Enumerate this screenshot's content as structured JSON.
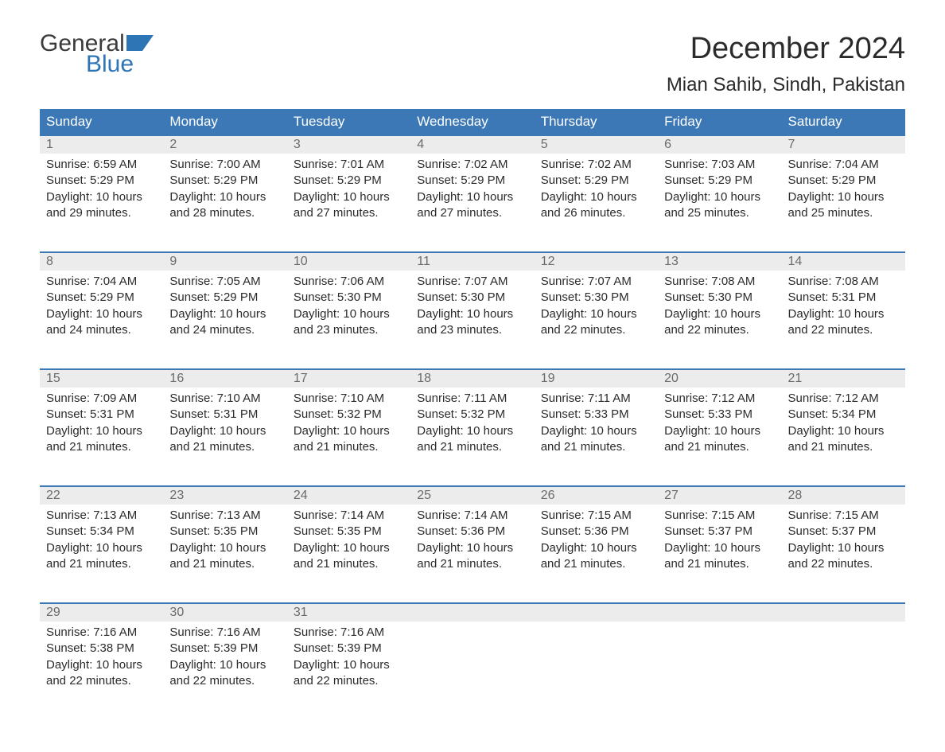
{
  "brand": {
    "word1": "General",
    "word2": "Blue",
    "color_text": "#3b3b3b",
    "color_accent": "#2e75b6"
  },
  "header": {
    "month_title": "December 2024",
    "location": "Mian Sahib, Sindh, Pakistan"
  },
  "calendar": {
    "columns": [
      "Sunday",
      "Monday",
      "Tuesday",
      "Wednesday",
      "Thursday",
      "Friday",
      "Saturday"
    ],
    "header_bg": "#3b78b5",
    "header_fg": "#ffffff",
    "daynum_bg": "#ececec",
    "daynum_fg": "#6b6b6b",
    "rule_color": "#3b78b5",
    "text_color": "#2b2b2b",
    "weeks": [
      [
        {
          "n": "1",
          "sunrise": "Sunrise: 6:59 AM",
          "sunset": "Sunset: 5:29 PM",
          "d1": "Daylight: 10 hours",
          "d2": "and 29 minutes."
        },
        {
          "n": "2",
          "sunrise": "Sunrise: 7:00 AM",
          "sunset": "Sunset: 5:29 PM",
          "d1": "Daylight: 10 hours",
          "d2": "and 28 minutes."
        },
        {
          "n": "3",
          "sunrise": "Sunrise: 7:01 AM",
          "sunset": "Sunset: 5:29 PM",
          "d1": "Daylight: 10 hours",
          "d2": "and 27 minutes."
        },
        {
          "n": "4",
          "sunrise": "Sunrise: 7:02 AM",
          "sunset": "Sunset: 5:29 PM",
          "d1": "Daylight: 10 hours",
          "d2": "and 27 minutes."
        },
        {
          "n": "5",
          "sunrise": "Sunrise: 7:02 AM",
          "sunset": "Sunset: 5:29 PM",
          "d1": "Daylight: 10 hours",
          "d2": "and 26 minutes."
        },
        {
          "n": "6",
          "sunrise": "Sunrise: 7:03 AM",
          "sunset": "Sunset: 5:29 PM",
          "d1": "Daylight: 10 hours",
          "d2": "and 25 minutes."
        },
        {
          "n": "7",
          "sunrise": "Sunrise: 7:04 AM",
          "sunset": "Sunset: 5:29 PM",
          "d1": "Daylight: 10 hours",
          "d2": "and 25 minutes."
        }
      ],
      [
        {
          "n": "8",
          "sunrise": "Sunrise: 7:04 AM",
          "sunset": "Sunset: 5:29 PM",
          "d1": "Daylight: 10 hours",
          "d2": "and 24 minutes."
        },
        {
          "n": "9",
          "sunrise": "Sunrise: 7:05 AM",
          "sunset": "Sunset: 5:29 PM",
          "d1": "Daylight: 10 hours",
          "d2": "and 24 minutes."
        },
        {
          "n": "10",
          "sunrise": "Sunrise: 7:06 AM",
          "sunset": "Sunset: 5:30 PM",
          "d1": "Daylight: 10 hours",
          "d2": "and 23 minutes."
        },
        {
          "n": "11",
          "sunrise": "Sunrise: 7:07 AM",
          "sunset": "Sunset: 5:30 PM",
          "d1": "Daylight: 10 hours",
          "d2": "and 23 minutes."
        },
        {
          "n": "12",
          "sunrise": "Sunrise: 7:07 AM",
          "sunset": "Sunset: 5:30 PM",
          "d1": "Daylight: 10 hours",
          "d2": "and 22 minutes."
        },
        {
          "n": "13",
          "sunrise": "Sunrise: 7:08 AM",
          "sunset": "Sunset: 5:30 PM",
          "d1": "Daylight: 10 hours",
          "d2": "and 22 minutes."
        },
        {
          "n": "14",
          "sunrise": "Sunrise: 7:08 AM",
          "sunset": "Sunset: 5:31 PM",
          "d1": "Daylight: 10 hours",
          "d2": "and 22 minutes."
        }
      ],
      [
        {
          "n": "15",
          "sunrise": "Sunrise: 7:09 AM",
          "sunset": "Sunset: 5:31 PM",
          "d1": "Daylight: 10 hours",
          "d2": "and 21 minutes."
        },
        {
          "n": "16",
          "sunrise": "Sunrise: 7:10 AM",
          "sunset": "Sunset: 5:31 PM",
          "d1": "Daylight: 10 hours",
          "d2": "and 21 minutes."
        },
        {
          "n": "17",
          "sunrise": "Sunrise: 7:10 AM",
          "sunset": "Sunset: 5:32 PM",
          "d1": "Daylight: 10 hours",
          "d2": "and 21 minutes."
        },
        {
          "n": "18",
          "sunrise": "Sunrise: 7:11 AM",
          "sunset": "Sunset: 5:32 PM",
          "d1": "Daylight: 10 hours",
          "d2": "and 21 minutes."
        },
        {
          "n": "19",
          "sunrise": "Sunrise: 7:11 AM",
          "sunset": "Sunset: 5:33 PM",
          "d1": "Daylight: 10 hours",
          "d2": "and 21 minutes."
        },
        {
          "n": "20",
          "sunrise": "Sunrise: 7:12 AM",
          "sunset": "Sunset: 5:33 PM",
          "d1": "Daylight: 10 hours",
          "d2": "and 21 minutes."
        },
        {
          "n": "21",
          "sunrise": "Sunrise: 7:12 AM",
          "sunset": "Sunset: 5:34 PM",
          "d1": "Daylight: 10 hours",
          "d2": "and 21 minutes."
        }
      ],
      [
        {
          "n": "22",
          "sunrise": "Sunrise: 7:13 AM",
          "sunset": "Sunset: 5:34 PM",
          "d1": "Daylight: 10 hours",
          "d2": "and 21 minutes."
        },
        {
          "n": "23",
          "sunrise": "Sunrise: 7:13 AM",
          "sunset": "Sunset: 5:35 PM",
          "d1": "Daylight: 10 hours",
          "d2": "and 21 minutes."
        },
        {
          "n": "24",
          "sunrise": "Sunrise: 7:14 AM",
          "sunset": "Sunset: 5:35 PM",
          "d1": "Daylight: 10 hours",
          "d2": "and 21 minutes."
        },
        {
          "n": "25",
          "sunrise": "Sunrise: 7:14 AM",
          "sunset": "Sunset: 5:36 PM",
          "d1": "Daylight: 10 hours",
          "d2": "and 21 minutes."
        },
        {
          "n": "26",
          "sunrise": "Sunrise: 7:15 AM",
          "sunset": "Sunset: 5:36 PM",
          "d1": "Daylight: 10 hours",
          "d2": "and 21 minutes."
        },
        {
          "n": "27",
          "sunrise": "Sunrise: 7:15 AM",
          "sunset": "Sunset: 5:37 PM",
          "d1": "Daylight: 10 hours",
          "d2": "and 21 minutes."
        },
        {
          "n": "28",
          "sunrise": "Sunrise: 7:15 AM",
          "sunset": "Sunset: 5:37 PM",
          "d1": "Daylight: 10 hours",
          "d2": "and 22 minutes."
        }
      ],
      [
        {
          "n": "29",
          "sunrise": "Sunrise: 7:16 AM",
          "sunset": "Sunset: 5:38 PM",
          "d1": "Daylight: 10 hours",
          "d2": "and 22 minutes."
        },
        {
          "n": "30",
          "sunrise": "Sunrise: 7:16 AM",
          "sunset": "Sunset: 5:39 PM",
          "d1": "Daylight: 10 hours",
          "d2": "and 22 minutes."
        },
        {
          "n": "31",
          "sunrise": "Sunrise: 7:16 AM",
          "sunset": "Sunset: 5:39 PM",
          "d1": "Daylight: 10 hours",
          "d2": "and 22 minutes."
        },
        null,
        null,
        null,
        null
      ]
    ]
  }
}
